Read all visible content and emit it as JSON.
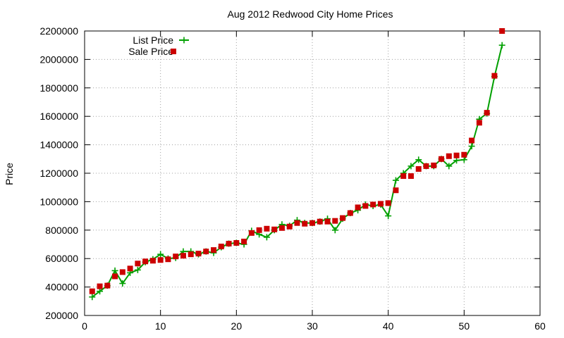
{
  "chart_data": {
    "type": "line",
    "title": "Aug 2012 Redwood City Home Prices",
    "xlabel": "",
    "ylabel": "Price",
    "xlim": [
      0,
      60
    ],
    "ylim": [
      200000,
      2200000
    ],
    "xticks": [
      0,
      10,
      20,
      30,
      40,
      50,
      60
    ],
    "yticks": [
      200000,
      400000,
      600000,
      800000,
      1000000,
      1200000,
      1400000,
      1600000,
      1800000,
      2000000,
      2200000
    ],
    "grid": true,
    "legend_position": "top-left",
    "series": [
      {
        "name": "List Price",
        "style": "linespoints",
        "color": "#00a000",
        "x": [
          1,
          2,
          3,
          4,
          5,
          6,
          7,
          8,
          9,
          10,
          11,
          12,
          13,
          14,
          15,
          16,
          17,
          18,
          19,
          20,
          21,
          22,
          23,
          24,
          25,
          26,
          27,
          28,
          29,
          30,
          31,
          32,
          33,
          34,
          35,
          36,
          37,
          38,
          39,
          40,
          41,
          42,
          43,
          44,
          45,
          46,
          47,
          48,
          49,
          50,
          51,
          52,
          53,
          54,
          55
        ],
        "values": [
          330000,
          370000,
          410000,
          515000,
          425000,
          500000,
          520000,
          575000,
          595000,
          630000,
          600000,
          605000,
          650000,
          650000,
          630000,
          650000,
          640000,
          680000,
          705000,
          710000,
          700000,
          795000,
          770000,
          750000,
          800000,
          840000,
          830000,
          870000,
          850000,
          850000,
          860000,
          880000,
          800000,
          880000,
          920000,
          940000,
          980000,
          970000,
          980000,
          900000,
          1150000,
          1200000,
          1250000,
          1295000,
          1250000,
          1250000,
          1300000,
          1250000,
          1290000,
          1295000,
          1390000,
          1580000,
          1620000,
          1880000,
          2100000
        ]
      },
      {
        "name": "Sale Price",
        "style": "points",
        "color": "#cc0000",
        "x": [
          1,
          2,
          3,
          4,
          5,
          6,
          7,
          8,
          9,
          10,
          11,
          12,
          13,
          14,
          15,
          16,
          17,
          18,
          19,
          20,
          21,
          22,
          23,
          24,
          25,
          26,
          27,
          28,
          29,
          30,
          31,
          32,
          33,
          34,
          35,
          36,
          37,
          38,
          39,
          40,
          41,
          42,
          43,
          44,
          45,
          46,
          47,
          48,
          49,
          50,
          51,
          52,
          53,
          54,
          55
        ],
        "values": [
          370000,
          405000,
          410000,
          475000,
          505000,
          530000,
          565000,
          580000,
          585000,
          590000,
          595000,
          615000,
          620000,
          630000,
          635000,
          650000,
          660000,
          685000,
          705000,
          710000,
          720000,
          780000,
          800000,
          810000,
          805000,
          815000,
          825000,
          850000,
          845000,
          850000,
          860000,
          860000,
          865000,
          885000,
          920000,
          960000,
          970000,
          980000,
          985000,
          990000,
          1080000,
          1180000,
          1180000,
          1230000,
          1250000,
          1255000,
          1300000,
          1320000,
          1325000,
          1330000,
          1430000,
          1555000,
          1625000,
          1885000,
          2200000
        ]
      }
    ]
  }
}
